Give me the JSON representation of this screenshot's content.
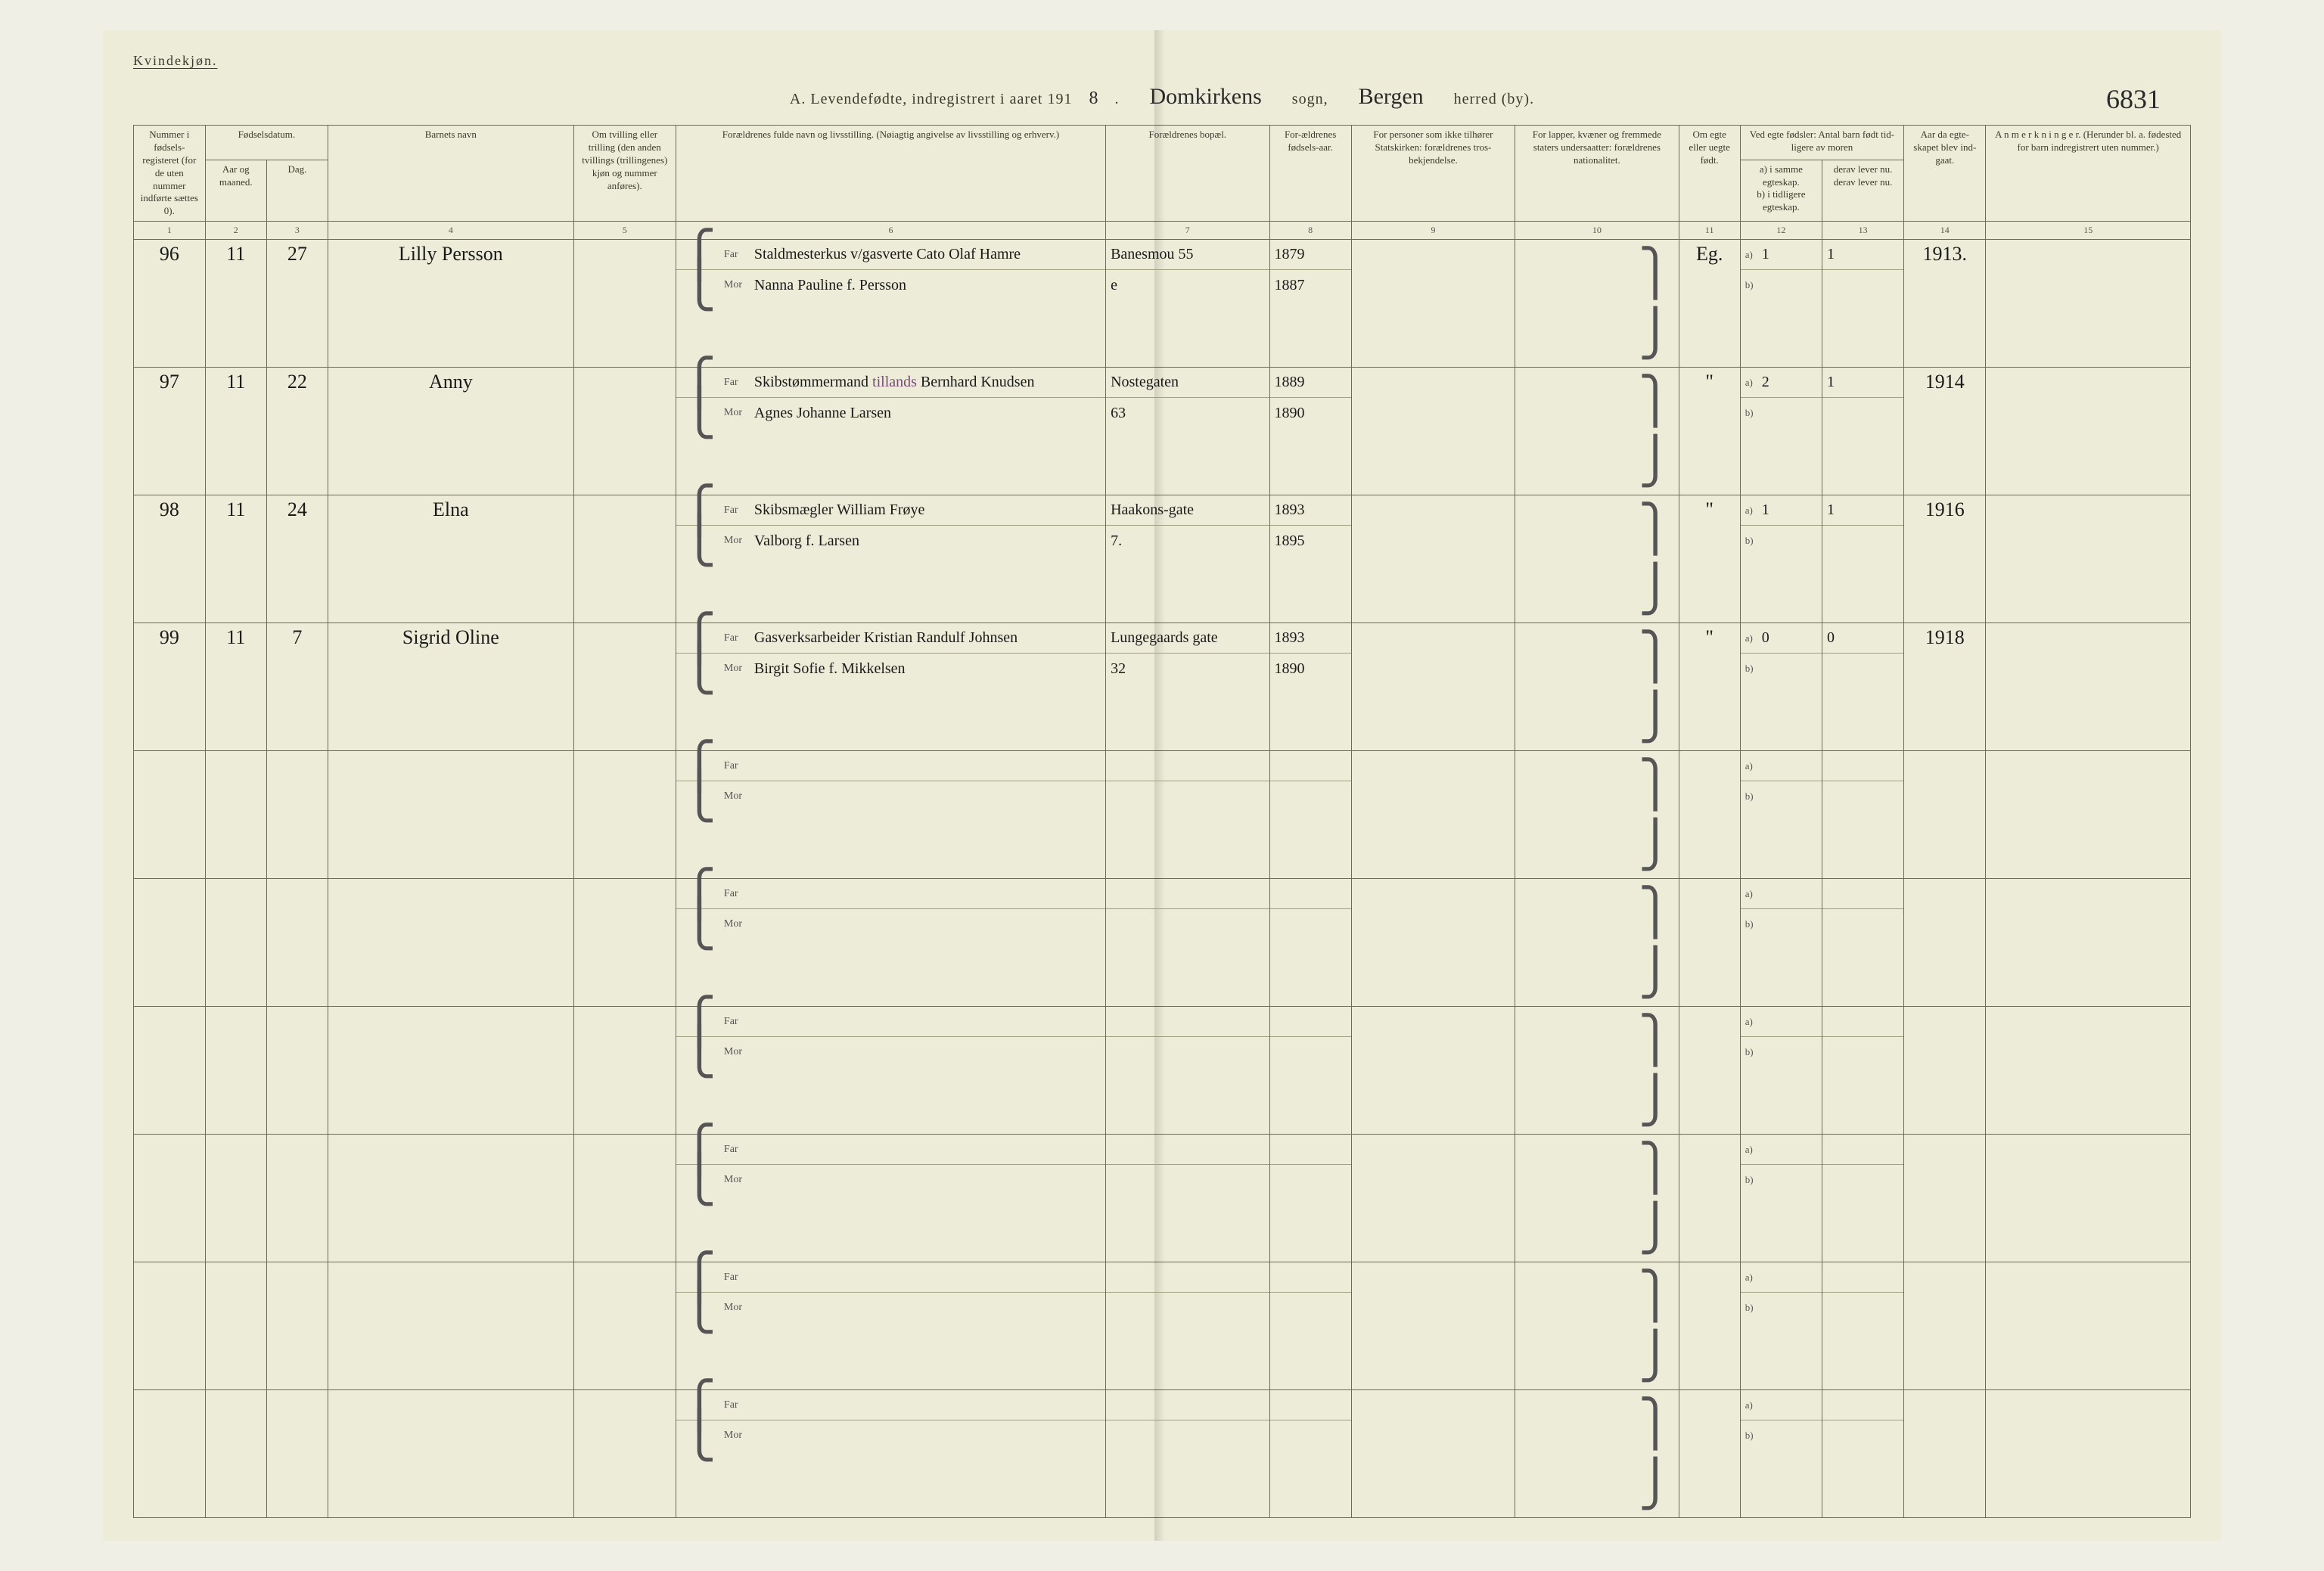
{
  "gender_label": "Kvindekjøn.",
  "title": {
    "prefix": "A. Levendefødte, indregistrert i aaret 191",
    "year_digit": "8",
    "dot": ".",
    "sogn_value": "Domkirkens",
    "sogn_label": "sogn,",
    "herred_value": "Bergen",
    "herred_label": "herred (by)."
  },
  "page_number": "6831",
  "headers": {
    "c1": "Nummer i fødsels-registeret (for de uten nummer indførte sættes 0).",
    "c2_group": "Fødselsdatum.",
    "c2": "Aar og maaned.",
    "c3": "Dag.",
    "c4": "Barnets navn",
    "c5": "Om tvilling eller trilling (den anden tvillings (trillingenes) kjøn og nummer anføres).",
    "c6": "Forældrenes fulde navn og livsstilling. (Nøiagtig angivelse av livsstilling og erhverv.)",
    "c7": "Forældrenes bopæl.",
    "c8": "For-ældrenes fødsels-aar.",
    "c9": "For personer som ikke tilhører Statskirken: forældrenes tros-bekjendelse.",
    "c10": "For lapper, kvæner og fremmede staters undersaatter: forældrenes nationalitet.",
    "c11": "Om egte eller uegte født.",
    "c12_group": "Ved egte fødsler: Antal barn født tid-ligere av moren",
    "c12a": "a) i samme egteskap.",
    "c12b": "b) i tidligere egteskap.",
    "c13a": "derav lever nu.",
    "c13b": "derav lever nu.",
    "c14": "Aar da egte-skapet blev ind-gaat.",
    "c15": "A n m e r k n i n g e r. (Herunder bl. a. fødested for barn indregistrert uten nummer.)"
  },
  "col_numbers": [
    "1",
    "2",
    "3",
    "4",
    "5",
    "6",
    "7",
    "8",
    "9",
    "10",
    "11",
    "12",
    "13",
    "14",
    "15"
  ],
  "parent_labels": {
    "far": "Far",
    "mor": "Mor"
  },
  "ab_labels": {
    "a": "a)",
    "b": "b)"
  },
  "rows": [
    {
      "num": "96",
      "month": "11",
      "day": "27",
      "name": "Lilly Persson",
      "far_occ": "Staldmesterkus v/gasverte",
      "far_name": "Cato Olaf Hamre",
      "mor_name": "Nanna Pauline f. Persson",
      "addr": "Banesmou 55 e",
      "far_year": "1879",
      "mor_year": "1887",
      "egte": "Eg.",
      "a": "1",
      "b": "",
      "c13a": "1",
      "c13b": "",
      "year": "1913."
    },
    {
      "num": "97",
      "month": "11",
      "day": "22",
      "name": "Anny",
      "far_occ": "Skibstømmermand",
      "far_occ_note": "tillands",
      "far_name": "Bernhard Knudsen",
      "mor_name": "Agnes Johanne Larsen",
      "addr": "Nostegaten 63",
      "far_year": "1889",
      "mor_year": "1890",
      "egte": "\"",
      "a": "2",
      "b": "",
      "c13a": "1",
      "c13b": "",
      "year": "1914"
    },
    {
      "num": "98",
      "month": "11",
      "day": "24",
      "name": "Elna",
      "far_occ": "Skibsmægler",
      "far_name": "William Frøye",
      "mor_name": "Valborg f. Larsen",
      "addr": "Haakons-gate 7.",
      "far_year": "1893",
      "mor_year": "1895",
      "egte": "\"",
      "a": "1",
      "b": "",
      "c13a": "1",
      "c13b": "",
      "year": "1916"
    },
    {
      "num": "99",
      "month": "11",
      "day": "7",
      "name": "Sigrid Oline",
      "far_occ": "Gasverksarbeider",
      "far_name": "Kristian Randulf Johnsen",
      "mor_name": "Birgit Sofie f. Mikkelsen",
      "addr": "Lungegaards gate 32",
      "far_year": "1893",
      "mor_year": "1890",
      "egte": "\"",
      "a": "0",
      "b": "",
      "c13a": "0",
      "c13b": "",
      "year": "1918"
    },
    {
      "empty": true
    },
    {
      "empty": true
    },
    {
      "empty": true
    },
    {
      "empty": true
    },
    {
      "empty": true
    },
    {
      "empty": true
    }
  ],
  "col_widths": {
    "c1": "3.5%",
    "c2": "3%",
    "c3": "3%",
    "c4": "12%",
    "c5": "5%",
    "c6": "21%",
    "c7": "8%",
    "c8": "4%",
    "c9": "8%",
    "c10": "8%",
    "c11": "3%",
    "c12": "4%",
    "c13": "4%",
    "c14": "4%",
    "c15": "10%"
  },
  "colors": {
    "paper": "#edecd8",
    "ink": "#3a3a2e",
    "rule": "#6b6b55",
    "cursive": "#1a1a1a",
    "purple": "#7a4a7a"
  }
}
